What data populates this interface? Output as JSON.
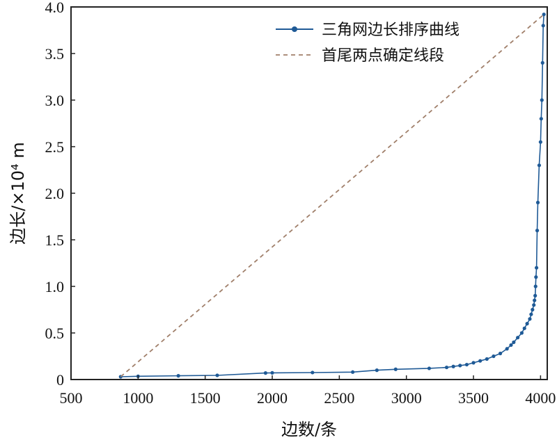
{
  "chart_data": {
    "type": "line",
    "xlabel": "边数/条",
    "ylabel": "边长/×10⁴ m",
    "xlim": [
      500,
      4050
    ],
    "ylim": [
      0,
      4.0
    ],
    "xticks": [
      500,
      1000,
      1500,
      2000,
      2500,
      3000,
      3500,
      4000
    ],
    "yticks": [
      0,
      0.5,
      1.0,
      1.5,
      2.0,
      2.5,
      3.0,
      3.5,
      4.0
    ],
    "ytick_labels": [
      "0",
      "0.5",
      "1.0",
      "1.5",
      "2.0",
      "2.5",
      "3.0",
      "3.5",
      "4.0"
    ],
    "grid": false,
    "legend_position": "top-right",
    "series": [
      {
        "name": "三角网边长排序曲线",
        "color": "#1f5a96",
        "marker": "circle",
        "style": "solid",
        "x": [
          870,
          1000,
          1300,
          1590,
          1950,
          2000,
          2300,
          2600,
          2780,
          2920,
          3170,
          3300,
          3350,
          3400,
          3450,
          3500,
          3550,
          3600,
          3650,
          3700,
          3750,
          3780,
          3800,
          3830,
          3860,
          3880,
          3900,
          3920,
          3930,
          3940,
          3950,
          3955,
          3960,
          3963,
          3966,
          3970,
          3975,
          3980,
          3990,
          4000,
          4005,
          4010,
          4015,
          4020,
          4025
        ],
        "y": [
          0.03,
          0.035,
          0.04,
          0.045,
          0.07,
          0.072,
          0.075,
          0.08,
          0.1,
          0.11,
          0.12,
          0.13,
          0.14,
          0.15,
          0.16,
          0.18,
          0.2,
          0.22,
          0.25,
          0.28,
          0.33,
          0.37,
          0.4,
          0.45,
          0.5,
          0.55,
          0.6,
          0.65,
          0.7,
          0.75,
          0.8,
          0.85,
          0.9,
          1.0,
          1.1,
          1.2,
          1.6,
          1.9,
          2.3,
          2.55,
          2.8,
          3.0,
          3.4,
          3.8,
          3.92
        ]
      },
      {
        "name": "首尾两点确定线段",
        "color": "#a07f6a",
        "marker": "none",
        "style": "dashed",
        "x": [
          870,
          4025
        ],
        "y": [
          0.03,
          3.92
        ]
      }
    ]
  }
}
